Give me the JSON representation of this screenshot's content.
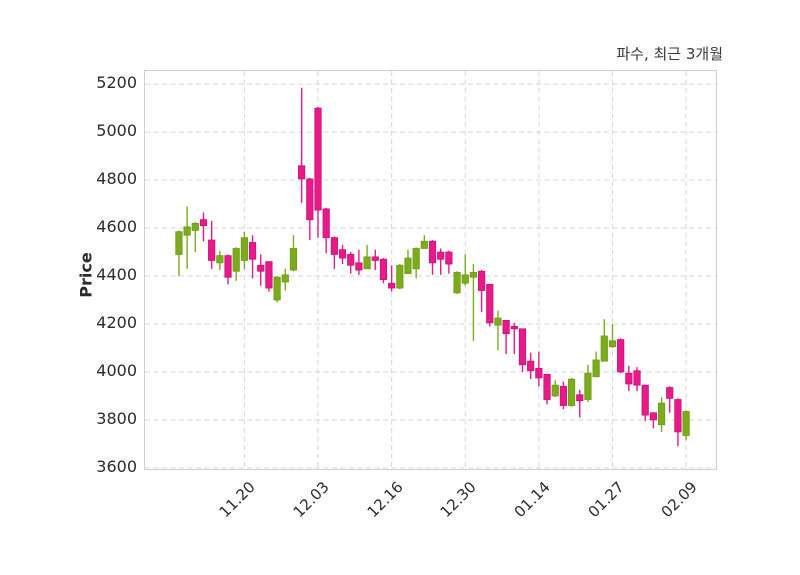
{
  "title": "파수, 최근 3개월",
  "y_axis": {
    "label": "Price",
    "ticks": [
      5200,
      5000,
      4800,
      4600,
      4400,
      4200,
      4000,
      3800,
      3600
    ]
  },
  "x_axis": {
    "ticks": [
      {
        "index": 9,
        "label": "11.20"
      },
      {
        "index": 18,
        "label": "12.03"
      },
      {
        "index": 27,
        "label": "12.16"
      },
      {
        "index": 36,
        "label": "12.30"
      },
      {
        "index": 45,
        "label": "01.14"
      },
      {
        "index": 54,
        "label": "01.27"
      },
      {
        "index": 63,
        "label": "02.09"
      }
    ]
  },
  "colors": {
    "up_fill": "#7cab1e",
    "up_edge": "#6d9d13",
    "down_fill": "#e61b8a",
    "down_edge": "#cf0d79",
    "grid": "#dadada",
    "spine": "#cfcfcf",
    "tick_text": "#2b2b2b",
    "title_text": "#3a3a3a"
  },
  "chart_data": {
    "type": "candlestick",
    "title": "파수, 최근 3개월",
    "xlabel": "",
    "ylabel": "Price",
    "grid": "dashed-both-axes",
    "legend": "none",
    "ylim": [
      3587,
      5255
    ],
    "xlim_index": [
      -3.15,
      66.9
    ],
    "ohlc_note": "each candle is [open, high, low, close]; index 1..63, ticks mark dates",
    "candles": [
      [
        4490,
        4590,
        4400,
        4585
      ],
      [
        4570,
        4690,
        4430,
        4605
      ],
      [
        4590,
        4625,
        4500,
        4620
      ],
      [
        4635,
        4665,
        4545,
        4610
      ],
      [
        4550,
        4630,
        4430,
        4465
      ],
      [
        4455,
        4505,
        4425,
        4485
      ],
      [
        4485,
        4490,
        4365,
        4395
      ],
      [
        4420,
        4520,
        4380,
        4515
      ],
      [
        4465,
        4585,
        4430,
        4560
      ],
      [
        4540,
        4570,
        4390,
        4470
      ],
      [
        4445,
        4490,
        4360,
        4420
      ],
      [
        4460,
        4460,
        4335,
        4350
      ],
      [
        4300,
        4400,
        4290,
        4395
      ],
      [
        4375,
        4430,
        4340,
        4405
      ],
      [
        4425,
        4570,
        4420,
        4515
      ],
      [
        4860,
        5185,
        4705,
        4805
      ],
      [
        4805,
        4810,
        4550,
        4635
      ],
      [
        5100,
        5105,
        4560,
        4675
      ],
      [
        4680,
        4685,
        4495,
        4560
      ],
      [
        4560,
        4565,
        4430,
        4490
      ],
      [
        4510,
        4530,
        4450,
        4475
      ],
      [
        4490,
        4500,
        4410,
        4445
      ],
      [
        4455,
        4510,
        4405,
        4425
      ],
      [
        4430,
        4530,
        4430,
        4480
      ],
      [
        4480,
        4510,
        4425,
        4465
      ],
      [
        4470,
        4475,
        4370,
        4385
      ],
      [
        4370,
        4445,
        4335,
        4350
      ],
      [
        4350,
        4450,
        4345,
        4445
      ],
      [
        4410,
        4510,
        4410,
        4475
      ],
      [
        4430,
        4520,
        4390,
        4515
      ],
      [
        4515,
        4570,
        4515,
        4545
      ],
      [
        4545,
        4550,
        4405,
        4455
      ],
      [
        4500,
        4515,
        4405,
        4470
      ],
      [
        4500,
        4505,
        4410,
        4450
      ],
      [
        4330,
        4420,
        4325,
        4415
      ],
      [
        4370,
        4490,
        4360,
        4405
      ],
      [
        4395,
        4450,
        4130,
        4415
      ],
      [
        4420,
        4425,
        4250,
        4340
      ],
      [
        4365,
        4365,
        4190,
        4205
      ],
      [
        4195,
        4255,
        4090,
        4225
      ],
      [
        4215,
        4215,
        4075,
        4160
      ],
      [
        4190,
        4205,
        4075,
        4180
      ],
      [
        4180,
        4180,
        4000,
        4030
      ],
      [
        4045,
        4080,
        3970,
        4005
      ],
      [
        4015,
        4085,
        3940,
        3975
      ],
      [
        3990,
        3990,
        3865,
        3885
      ],
      [
        3900,
        3965,
        3895,
        3945
      ],
      [
        3940,
        3960,
        3845,
        3860
      ],
      [
        3860,
        3975,
        3855,
        3970
      ],
      [
        3905,
        3925,
        3810,
        3880
      ],
      [
        3885,
        4030,
        3875,
        3995
      ],
      [
        3980,
        4085,
        3980,
        4050
      ],
      [
        4045,
        4220,
        4045,
        4150
      ],
      [
        4105,
        4200,
        4100,
        4130
      ],
      [
        4135,
        4140,
        3995,
        4000
      ],
      [
        3995,
        4025,
        3920,
        3950
      ],
      [
        4005,
        4020,
        3920,
        3945
      ],
      [
        3945,
        3945,
        3795,
        3820
      ],
      [
        3830,
        3830,
        3765,
        3800
      ],
      [
        3780,
        3895,
        3750,
        3870
      ],
      [
        3935,
        3940,
        3830,
        3890
      ],
      [
        3885,
        3890,
        3690,
        3750
      ],
      [
        3735,
        3840,
        3715,
        3835
      ]
    ]
  }
}
